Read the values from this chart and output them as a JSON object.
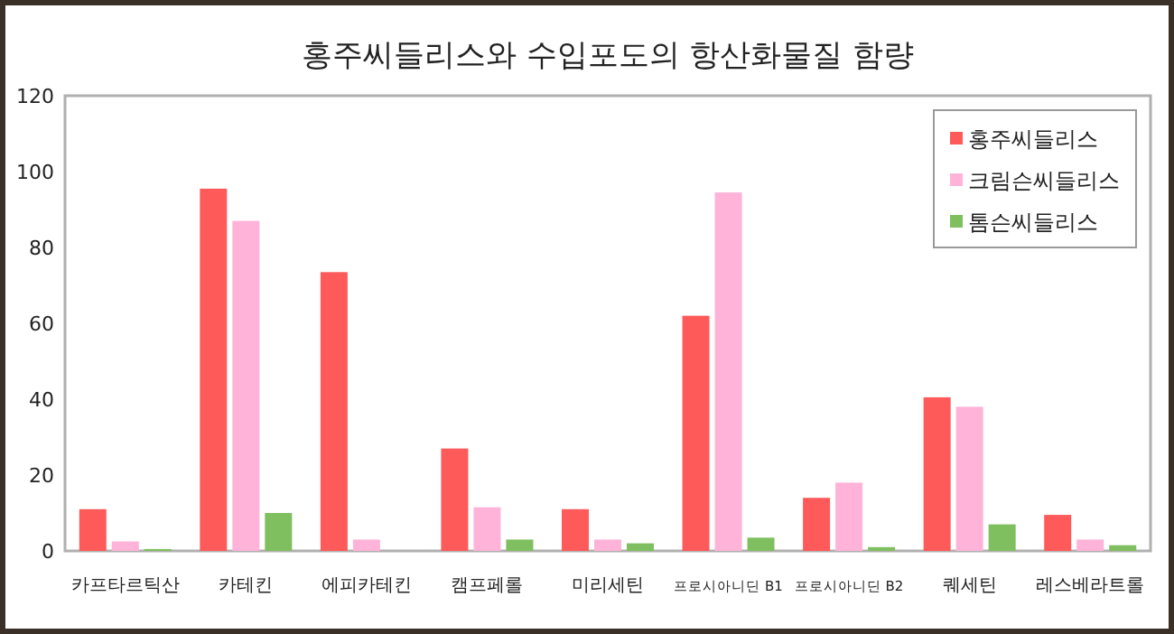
{
  "chart_data": {
    "type": "bar",
    "title": "홍주씨들리스와 수입포도의 항산화물질 함량",
    "categories": [
      "카프타르틱산",
      "카테킨",
      "에피카테킨",
      "캠프페롤",
      "미리세틴",
      "프로시아니딘 B1",
      "프로시아니딘 B2",
      "퀘세틴",
      "레스베라트롤"
    ],
    "series": [
      {
        "name": "홍주씨들리스",
        "color": "#ff5a5a",
        "values": [
          11,
          95.5,
          73.5,
          27,
          11,
          62,
          14,
          40.5,
          9.5
        ]
      },
      {
        "name": "크림슨씨들리스",
        "color": "#ffb3d9",
        "values": [
          2.5,
          87,
          3,
          11.5,
          3,
          94.5,
          18,
          38,
          3
        ]
      },
      {
        "name": "톰슨씨들리스",
        "color": "#7fbf5f",
        "values": [
          0.5,
          10,
          0,
          3,
          2,
          3.5,
          1,
          7,
          1.5
        ]
      }
    ],
    "ylim": [
      0,
      120
    ],
    "yticks": [
      0,
      20,
      40,
      60,
      80,
      100,
      120
    ],
    "grid": false,
    "legend": "top right"
  }
}
